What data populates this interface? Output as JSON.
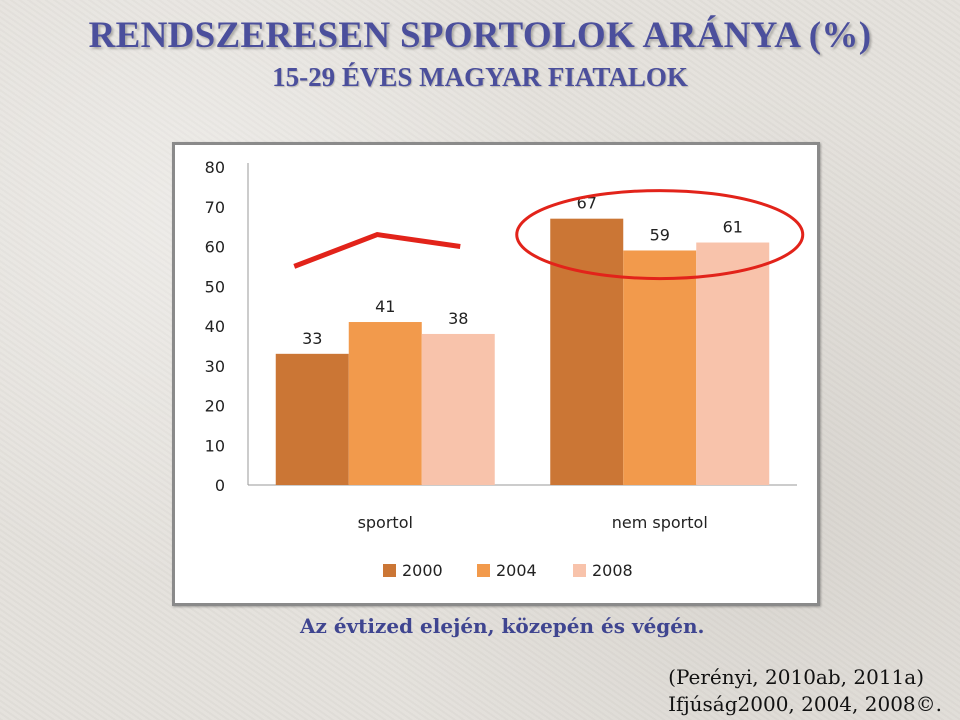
{
  "title": "RENDSZERESEN SPORTOLOK ARÁNYA (%)",
  "subtitle": "15-29 ÉVES MAGYAR FIATALOK",
  "caption": "Az évtized elején, közepén és végén.",
  "source_line1": "(Perényi, 2010ab, 2011a)",
  "source_line2": "Ifjúság2000, 2004, 2008©.",
  "colors": {
    "s2000": "#cb7635",
    "s2004": "#f29a4c",
    "s2008": "#f8c3ab",
    "annotation": "#e2231a"
  },
  "chart_data": {
    "type": "bar",
    "categories": [
      "sportol",
      "nem sportol"
    ],
    "series": [
      {
        "name": "2000",
        "values": [
          33,
          67
        ],
        "color": "#cb7635"
      },
      {
        "name": "2004",
        "values": [
          41,
          59
        ],
        "color": "#f29a4c"
      },
      {
        "name": "2008",
        "values": [
          38,
          61
        ],
        "color": "#f8c3ab"
      }
    ],
    "ylim": [
      0,
      80
    ],
    "yticks": [
      0,
      10,
      20,
      30,
      40,
      50,
      60,
      70,
      80
    ],
    "grid": false,
    "legend": "bottom",
    "annotations": [
      "red trend line over sportol bars",
      "red ellipse around nem sportol bars"
    ]
  }
}
